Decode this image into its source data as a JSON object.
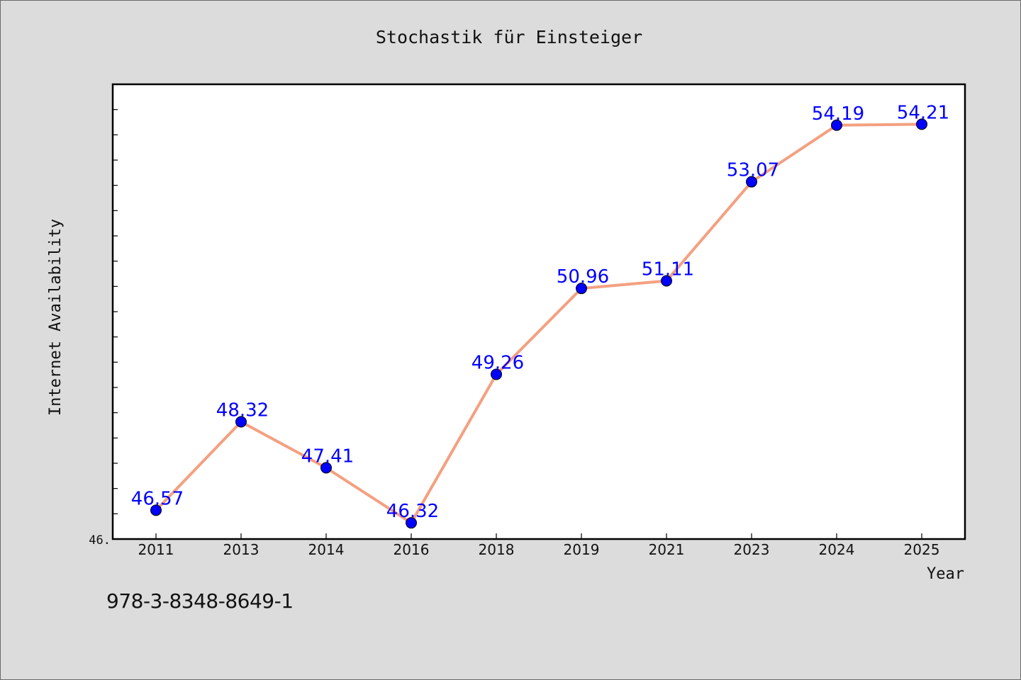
{
  "chart_data": {
    "type": "line",
    "title": "Stochastik für Einsteiger",
    "xlabel": "Year",
    "ylabel": "Internet Availability",
    "categories": [
      "2011",
      "2013",
      "2014",
      "2016",
      "2018",
      "2019",
      "2021",
      "2023",
      "2024",
      "2025"
    ],
    "series": [
      {
        "values": [
          46.57,
          48.32,
          47.41,
          46.32,
          49.26,
          50.96,
          51.11,
          53.07,
          54.19,
          54.21
        ],
        "data_labels": [
          "46.57",
          "48.32",
          "47.41",
          "46.32",
          "49.26",
          "50.96",
          "51.11",
          "53.07",
          "54.19",
          "54.21"
        ],
        "line_color": "#f4a080",
        "marker_color": "#0000ff",
        "label_color": "#0000ff"
      }
    ],
    "ylim": [
      46.0,
      55.0
    ],
    "y_tick_label": "46.",
    "grid": false,
    "legend": "none",
    "plot_background": "#ffffff",
    "figure_background": "#dcdcdc"
  },
  "footer": {
    "isbn": "978-3-8348-8649-1"
  }
}
